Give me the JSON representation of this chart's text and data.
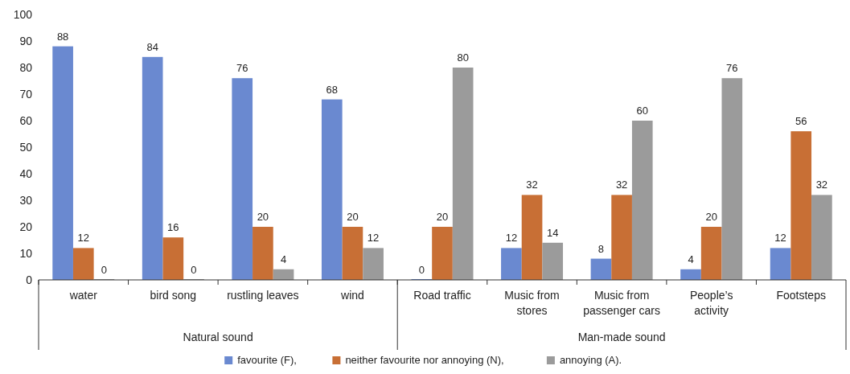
{
  "chart_data": {
    "type": "bar",
    "categories": [
      "water",
      "bird song",
      "rustling leaves",
      "wind",
      "Road traffic",
      "Music from stores",
      "Music from passenger cars",
      "People’s activity",
      "Footsteps"
    ],
    "series": [
      {
        "name": "favourite (F),",
        "color": "#6a89d0",
        "values": [
          88,
          84,
          76,
          68,
          0,
          12,
          8,
          4,
          12
        ]
      },
      {
        "name": "neither favourite nor annoying (N),",
        "color": "#c86f35",
        "values": [
          12,
          16,
          20,
          20,
          20,
          32,
          32,
          20,
          56
        ]
      },
      {
        "name": "annoying (A).",
        "color": "#9b9b9b",
        "values": [
          0,
          0,
          4,
          12,
          80,
          14,
          60,
          76,
          32
        ]
      }
    ],
    "ylim": [
      0,
      100
    ],
    "yticks": [
      0,
      10,
      20,
      30,
      40,
      50,
      60,
      70,
      80,
      90,
      100
    ],
    "data_labels": true,
    "legend": "bottom",
    "grid": false,
    "annotations": [
      "Natural sound",
      "Man-made sound"
    ]
  }
}
